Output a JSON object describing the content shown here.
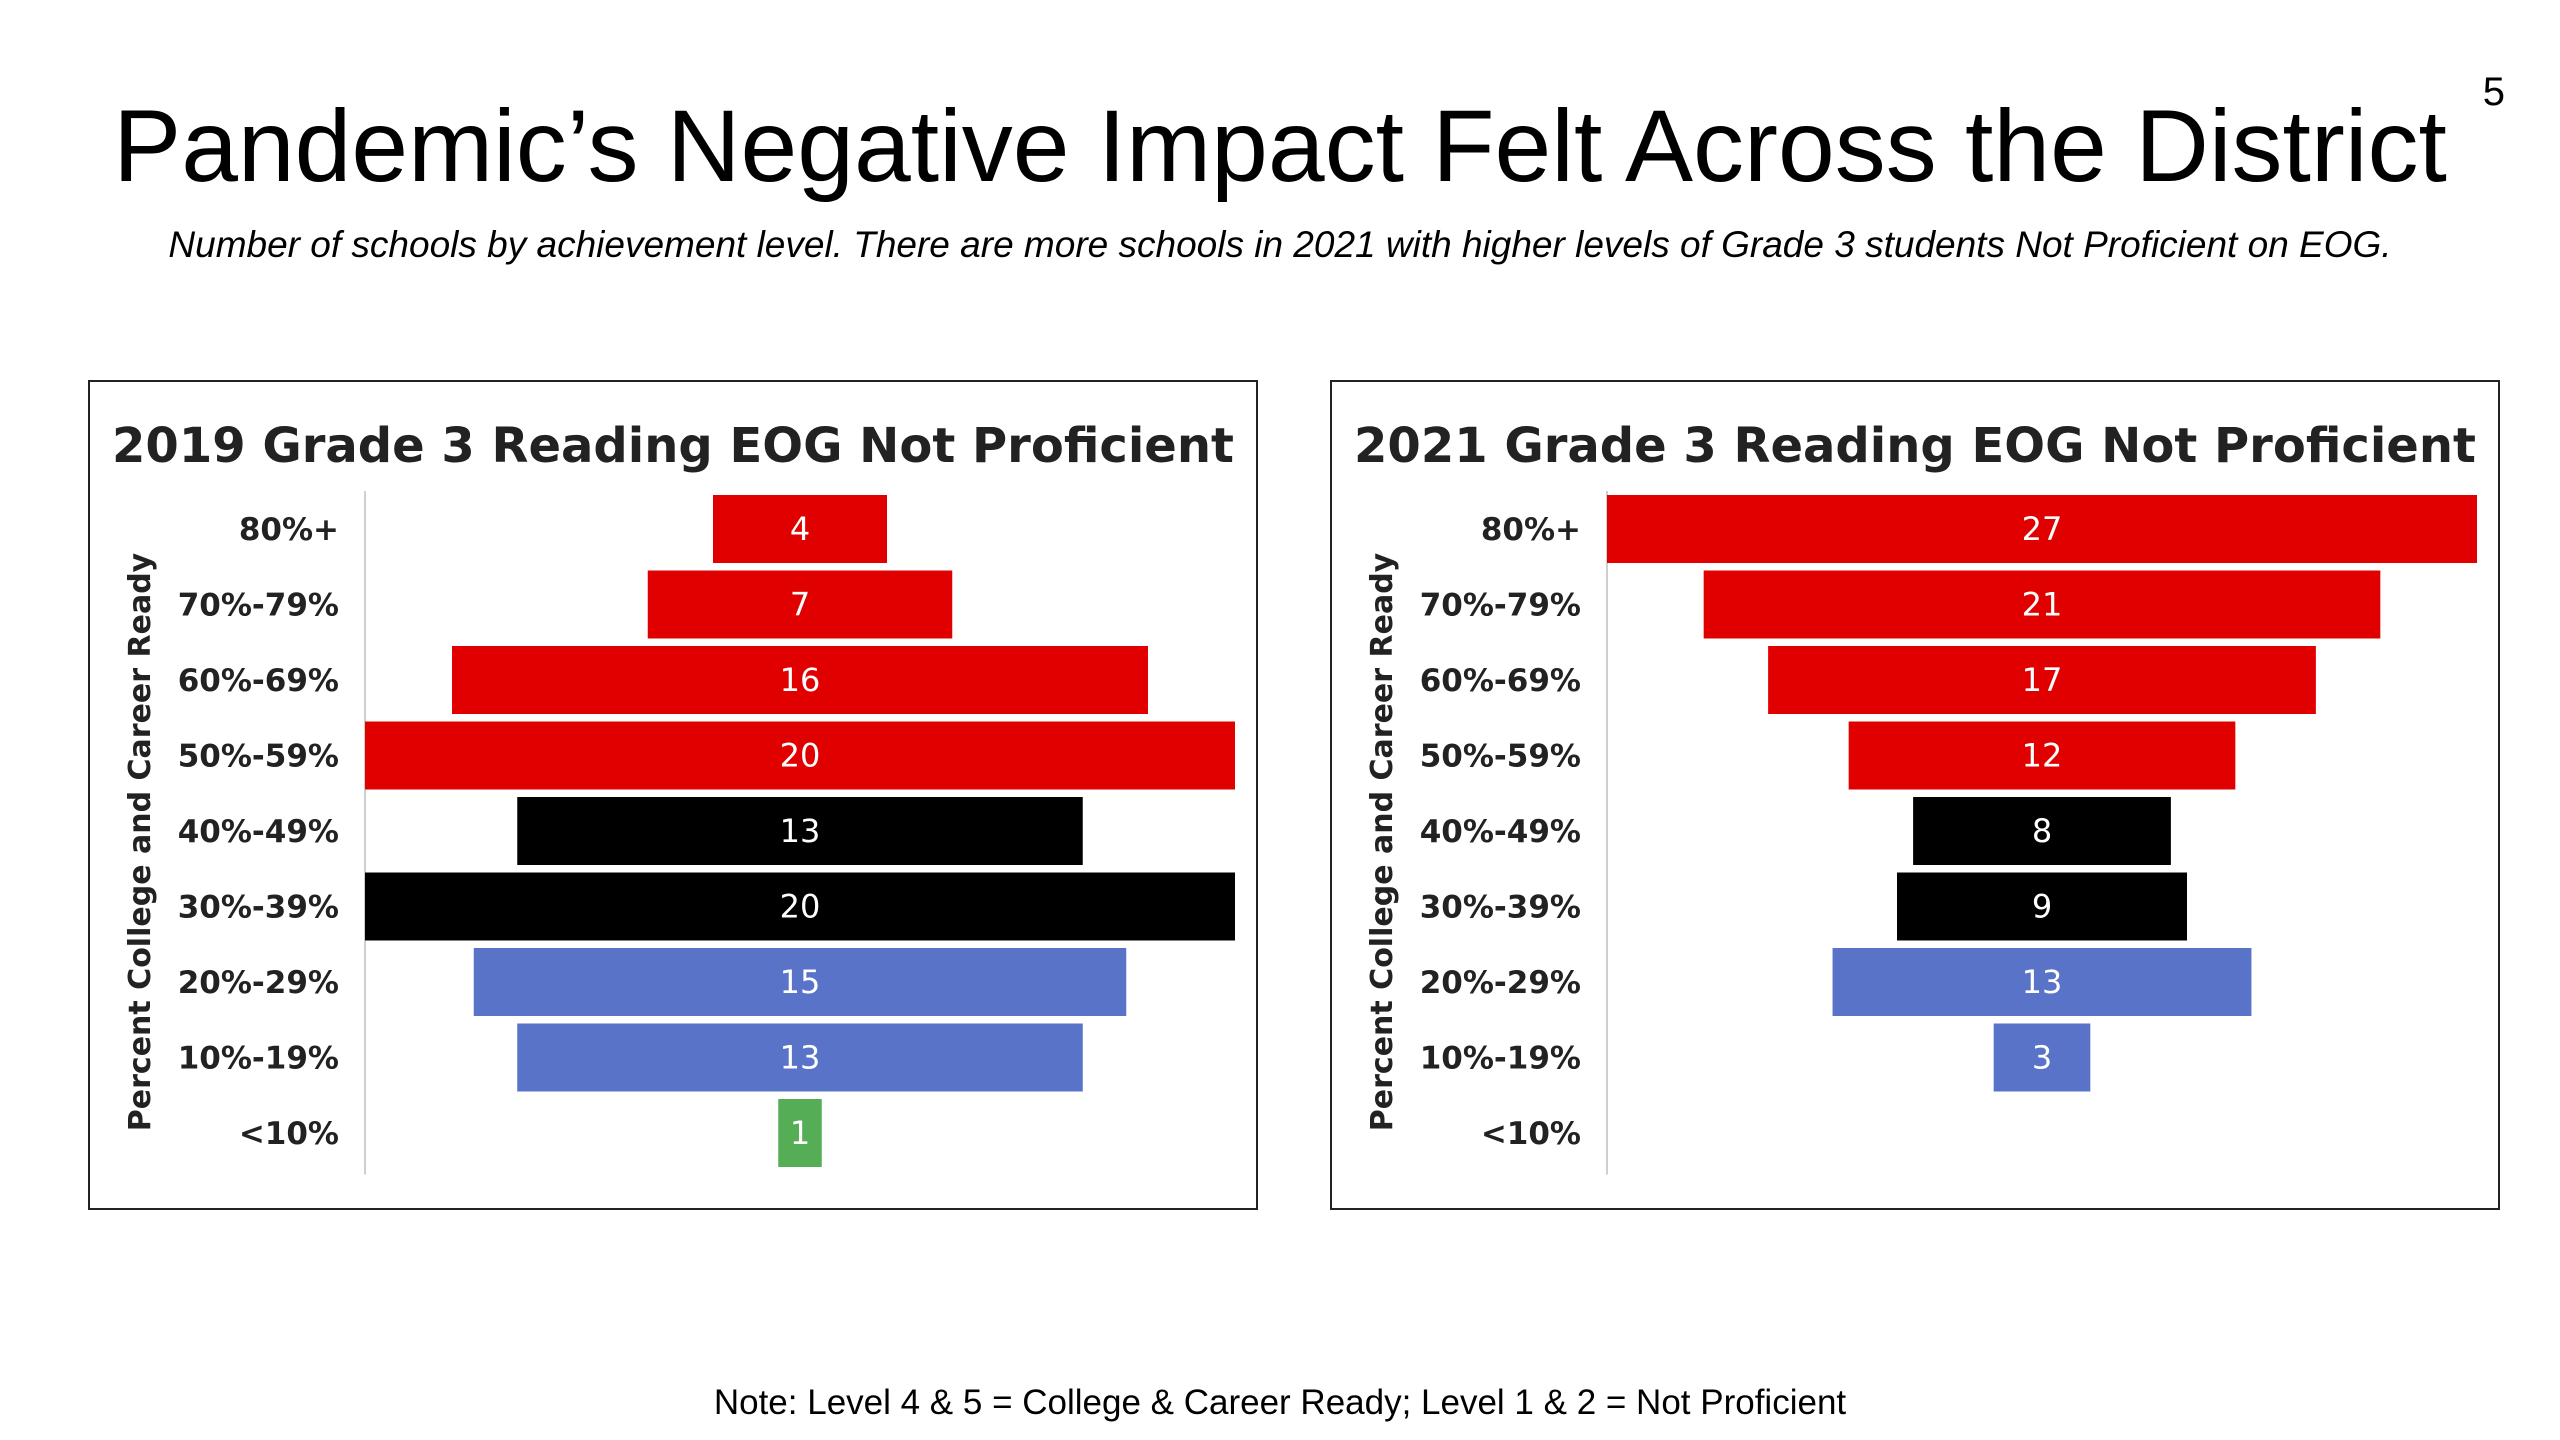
{
  "slide": {
    "title": "Pandemic’s Negative Impact Felt Across the District",
    "subtitle": "Number of schools by achievement level. There are more schools in 2021 with higher levels of Grade 3 students Not Proficient on EOG.",
    "page_number": "5",
    "footnote": "Note: Level 4 & 5 = College & Career Ready; Level 1 & 2 = Not Proficient"
  },
  "colors": {
    "red": "#e00000",
    "black": "#000000",
    "blue": "#5873c8",
    "green": "#55ad55"
  },
  "chart_data": [
    {
      "type": "bar",
      "orientation": "horizontal-centered",
      "title": "2019 Grade 3 Reading EOG Not Proficient",
      "ylabel": "Percent College and Career Ready",
      "categories": [
        "80%+",
        "70%-79%",
        "60%-69%",
        "50%-59%",
        "40%-49%",
        "30%-39%",
        "20%-29%",
        "10%-19%",
        "<10%"
      ],
      "values": [
        4,
        7,
        16,
        20,
        13,
        20,
        15,
        13,
        1
      ],
      "bar_colors": [
        "red",
        "red",
        "red",
        "red",
        "black",
        "black",
        "blue",
        "blue",
        "green"
      ],
      "xlim": [
        0,
        20
      ]
    },
    {
      "type": "bar",
      "orientation": "horizontal-centered",
      "title": "2021 Grade 3 Reading EOG Not Proficient",
      "ylabel": "Percent College and Career Ready",
      "categories": [
        "80%+",
        "70%-79%",
        "60%-69%",
        "50%-59%",
        "40%-49%",
        "30%-39%",
        "20%-29%",
        "10%-19%",
        "<10%"
      ],
      "values": [
        27,
        21,
        17,
        12,
        8,
        9,
        13,
        3,
        null
      ],
      "bar_colors": [
        "red",
        "red",
        "red",
        "red",
        "black",
        "black",
        "blue",
        "blue",
        "green"
      ],
      "xlim": [
        0,
        27
      ]
    }
  ]
}
